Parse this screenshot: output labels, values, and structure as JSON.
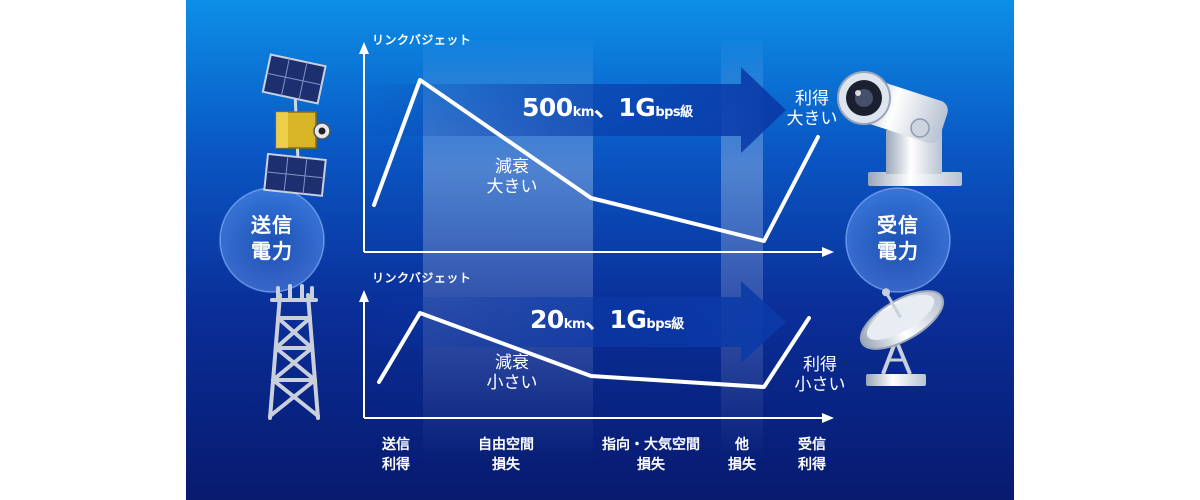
{
  "colors": {
    "background_top": "#0c8fe6",
    "background_bottom": "#071a6e",
    "curve": "#ffffff",
    "arrow": "#0a3aa8"
  },
  "icons": {
    "satellite": "satellite-icon",
    "tower": "transmission-tower-icon",
    "telescope": "optical-ground-station-icon",
    "dish": "parabolic-antenna-icon"
  },
  "charts": [
    {
      "axis_title": "リンクバジェット",
      "arrow_label_num": "500",
      "arrow_label_unit1": "km",
      "arrow_label_mid": "、1G",
      "arrow_label_unit2": "bps級",
      "attenuation_note": [
        "減衰",
        "大きい"
      ],
      "gain_note": [
        "利得",
        "大きい"
      ]
    },
    {
      "axis_title": "リンクバジェット",
      "arrow_label_num": "20",
      "arrow_label_unit1": "km",
      "arrow_label_mid": "、1G",
      "arrow_label_unit2": "bps級",
      "attenuation_note": [
        "減衰",
        "小さい"
      ],
      "gain_note": [
        "利得",
        "小さい"
      ]
    }
  ],
  "transmit_power": [
    "送信",
    "電力"
  ],
  "receive_power": [
    "受信",
    "電力"
  ],
  "x_categories": [
    [
      "送信",
      "利得"
    ],
    [
      "自由空間",
      "損失"
    ],
    [
      "指向・大気空間",
      "損失"
    ],
    [
      "他",
      "損失"
    ],
    [
      "受信",
      "利得"
    ]
  ]
}
